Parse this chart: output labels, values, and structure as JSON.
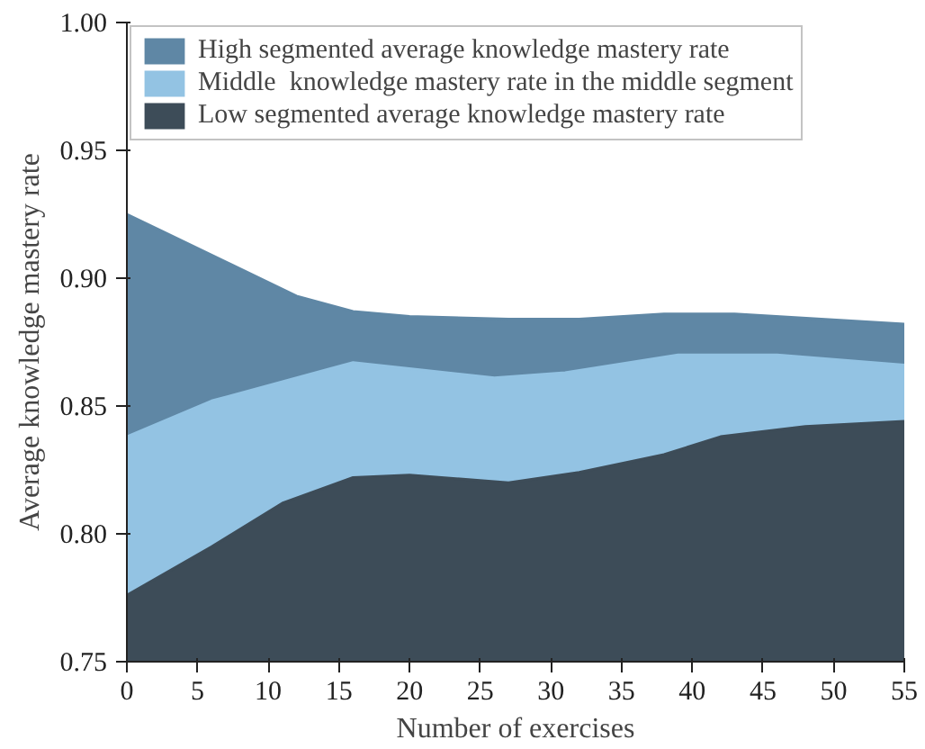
{
  "chart_data": {
    "type": "area",
    "xlabel": "Number of exercises",
    "ylabel": "Average knowledge mastery rate",
    "xlim": [
      0,
      55
    ],
    "ylim": [
      0.75,
      1.0
    ],
    "xticks": [
      0,
      5,
      10,
      15,
      20,
      25,
      30,
      35,
      40,
      45,
      50,
      55
    ],
    "yticks": [
      {
        "value": 0.75,
        "label": "0.75"
      },
      {
        "value": 0.8,
        "label": "0.80"
      },
      {
        "value": 0.85,
        "label": "0.85"
      },
      {
        "value": 0.9,
        "label": "0.90"
      },
      {
        "value": 0.95,
        "label": "0.95"
      },
      {
        "value": 1.0,
        "label": "1.00"
      }
    ],
    "grid": false,
    "legend": "top left",
    "series": [
      {
        "name": "High segmented average knowledge mastery rate",
        "color": "#5f87a5",
        "x": [
          0,
          12,
          16,
          20,
          27,
          32,
          38,
          43,
          55
        ],
        "values": [
          0.925,
          0.893,
          0.887,
          0.885,
          0.884,
          0.884,
          0.886,
          0.886,
          0.882
        ]
      },
      {
        "name": "Middle  knowledge mastery rate in the middle segment",
        "color": "#93c3e3",
        "x": [
          0,
          6,
          14,
          16,
          21,
          26,
          31,
          39,
          46,
          55
        ],
        "values": [
          0.838,
          0.852,
          0.864,
          0.867,
          0.864,
          0.861,
          0.863,
          0.87,
          0.87,
          0.866
        ]
      },
      {
        "name": "Low segmented average knowledge mastery rate",
        "color": "#3d4c58",
        "x": [
          0,
          6,
          11,
          16,
          20,
          27,
          32,
          38,
          42,
          48,
          55
        ],
        "values": [
          0.776,
          0.795,
          0.812,
          0.822,
          0.823,
          0.82,
          0.824,
          0.831,
          0.838,
          0.842,
          0.844
        ]
      }
    ]
  }
}
